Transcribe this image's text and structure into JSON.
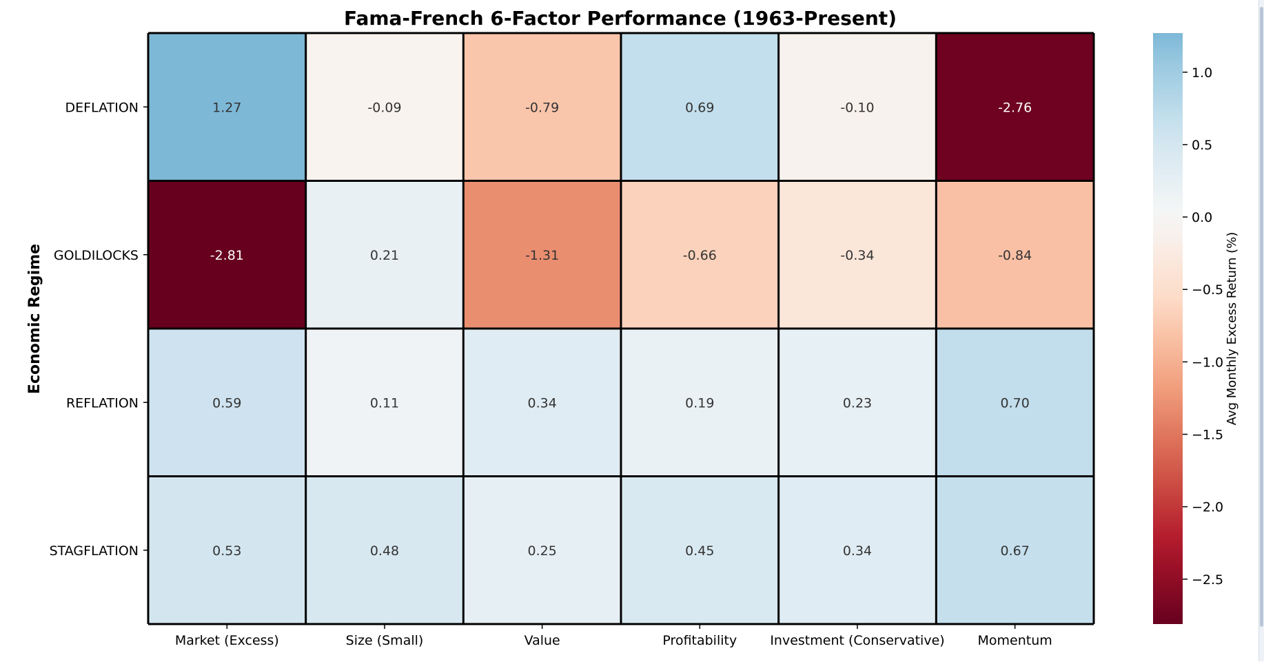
{
  "chart_data": {
    "type": "heatmap",
    "title": "Fama-French 6-Factor Performance (1963-Present)",
    "xlabel": "",
    "ylabel": "Economic Regime",
    "rows": [
      "DEFLATION",
      "GOLDILOCKS",
      "REFLATION",
      "STAGFLATION"
    ],
    "columns": [
      "Market (Excess)",
      "Size (Small)",
      "Value",
      "Profitability",
      "Investment (Conservative)",
      "Momentum"
    ],
    "values": [
      [
        1.27,
        -0.09,
        -0.79,
        0.69,
        -0.1,
        -2.76
      ],
      [
        -2.81,
        0.21,
        -1.31,
        -0.66,
        -0.34,
        -0.84
      ],
      [
        0.59,
        0.11,
        0.34,
        0.19,
        0.23,
        0.7
      ],
      [
        0.53,
        0.48,
        0.25,
        0.45,
        0.34,
        0.67
      ]
    ],
    "value_labels": [
      [
        "1.27",
        "-0.09",
        "-0.79",
        "0.69",
        "-0.10",
        "-2.76"
      ],
      [
        "-2.81",
        "0.21",
        "-1.31",
        "-0.66",
        "-0.34",
        "-0.84"
      ],
      [
        "0.59",
        "0.11",
        "0.34",
        "0.19",
        "0.23",
        "0.70"
      ],
      [
        "0.53",
        "0.48",
        "0.25",
        "0.45",
        "0.34",
        "0.67"
      ]
    ],
    "colormap": "RdBu",
    "center": 0,
    "vmin": -2.81,
    "vmax": 1.27,
    "colorbar": {
      "label": "Avg Monthly Excess Return (%)",
      "ticks": [
        1.0,
        0.5,
        0.0,
        -0.5,
        -1.0,
        -1.5,
        -2.0,
        -2.5
      ],
      "tick_labels": [
        "1.0",
        "0.5",
        "0.0",
        "−0.5",
        "−1.0",
        "−1.5",
        "−2.0",
        "−2.5"
      ]
    },
    "colors": {
      "cell_border": "#000000",
      "text_dark": "#333333",
      "text_light": "#ffffff"
    }
  }
}
